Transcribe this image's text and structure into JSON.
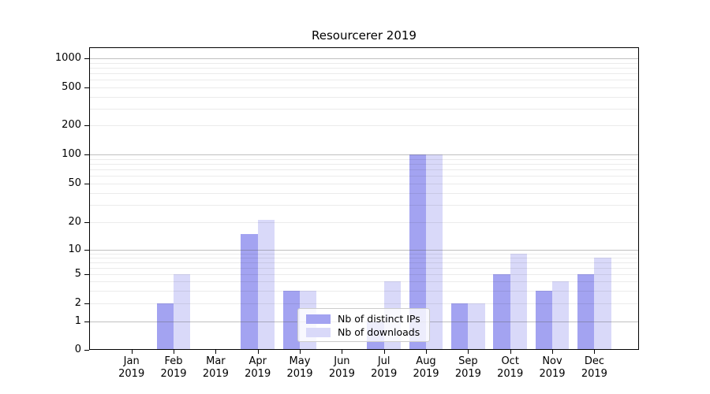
{
  "chart_data": {
    "type": "bar",
    "title": "Resourcerer 2019",
    "categories": [
      "Jan 2019",
      "Feb 2019",
      "Mar 2019",
      "Apr 2019",
      "May 2019",
      "Jun 2019",
      "Jul 2019",
      "Aug 2019",
      "Sep 2019",
      "Oct 2019",
      "Nov 2019",
      "Dec 2019"
    ],
    "series": [
      {
        "name": "Nb of distinct IPs",
        "color": "#a3a3f1",
        "values": [
          0,
          2,
          0,
          15,
          3,
          0,
          1,
          100,
          2,
          5,
          3,
          5
        ]
      },
      {
        "name": "Nb of downloads",
        "color": "#d9d9f9",
        "values": [
          0,
          5,
          0,
          21,
          3,
          0,
          4,
          100,
          2,
          9,
          4,
          8
        ]
      }
    ],
    "y_axis": {
      "scale": "symlog",
      "ticks": [
        0,
        1,
        2,
        5,
        10,
        20,
        50,
        100,
        200,
        500,
        1000
      ],
      "major_gridlines": [
        1,
        10,
        100,
        1000
      ],
      "minor_gridlines": [
        2,
        3,
        4,
        5,
        6,
        7,
        8,
        9,
        20,
        30,
        40,
        50,
        60,
        70,
        80,
        90,
        200,
        300,
        400,
        500,
        600,
        700,
        800,
        900
      ]
    },
    "xlabel": "",
    "ylabel": "",
    "grid": "on",
    "legend_position": "lower center"
  },
  "colors": {
    "bar_distinct_ips": "#a3a3f1",
    "bar_downloads": "#d9d9f9",
    "background": "#ffffff",
    "axis": "#000000"
  }
}
